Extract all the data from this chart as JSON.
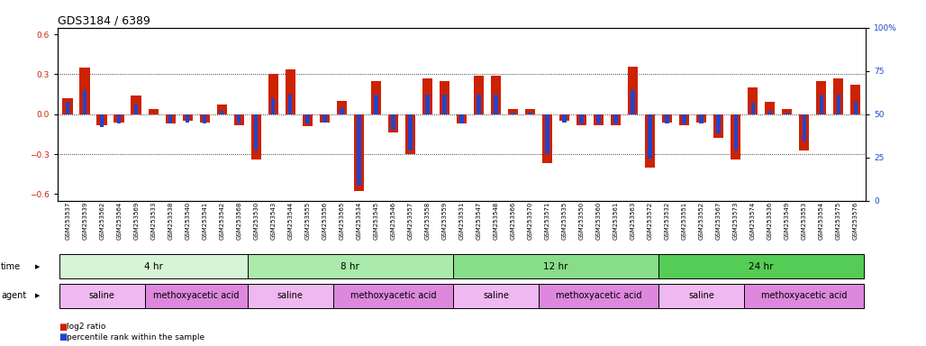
{
  "title": "GDS3184 / 6389",
  "samples": [
    "GSM253537",
    "GSM253539",
    "GSM253562",
    "GSM253564",
    "GSM253569",
    "GSM253533",
    "GSM253538",
    "GSM253540",
    "GSM253541",
    "GSM253542",
    "GSM253568",
    "GSM253530",
    "GSM253543",
    "GSM253544",
    "GSM253555",
    "GSM253556",
    "GSM253565",
    "GSM253534",
    "GSM253545",
    "GSM253546",
    "GSM253557",
    "GSM253558",
    "GSM253559",
    "GSM253531",
    "GSM253547",
    "GSM253548",
    "GSM253566",
    "GSM253570",
    "GSM253571",
    "GSM253535",
    "GSM253550",
    "GSM253560",
    "GSM253561",
    "GSM253563",
    "GSM253572",
    "GSM253532",
    "GSM253551",
    "GSM253552",
    "GSM253567",
    "GSM253573",
    "GSM253574",
    "GSM253536",
    "GSM253549",
    "GSM253553",
    "GSM253554",
    "GSM253575",
    "GSM253576"
  ],
  "log2_ratio": [
    0.12,
    0.35,
    -0.08,
    -0.06,
    0.14,
    0.04,
    -0.07,
    -0.05,
    -0.06,
    0.07,
    -0.08,
    -0.34,
    0.3,
    0.34,
    -0.09,
    -0.06,
    0.1,
    -0.58,
    0.25,
    -0.14,
    -0.3,
    0.27,
    0.25,
    -0.07,
    0.29,
    0.29,
    0.04,
    0.04,
    -0.37,
    -0.05,
    -0.08,
    -0.08,
    -0.08,
    0.36,
    -0.4,
    -0.06,
    -0.08,
    -0.06,
    -0.18,
    -0.34,
    0.2,
    0.09,
    0.04,
    -0.27,
    0.25,
    0.27,
    0.22
  ],
  "percentile": [
    58,
    65,
    42,
    44,
    56,
    50,
    44,
    45,
    44,
    52,
    44,
    27,
    60,
    62,
    44,
    45,
    54,
    5,
    62,
    40,
    27,
    62,
    62,
    44,
    62,
    62,
    51,
    51,
    25,
    45,
    44,
    44,
    44,
    65,
    22,
    44,
    44,
    44,
    38,
    27,
    57,
    52,
    51,
    33,
    62,
    62,
    58
  ],
  "time_groups": [
    {
      "label": "4 hr",
      "start": 0,
      "end": 11,
      "color": "#d6f5d6"
    },
    {
      "label": "8 hr",
      "start": 11,
      "end": 23,
      "color": "#aaeaaa"
    },
    {
      "label": "12 hr",
      "start": 23,
      "end": 35,
      "color": "#88dd88"
    },
    {
      "label": "24 hr",
      "start": 35,
      "end": 47,
      "color": "#55cc55"
    }
  ],
  "agent_groups": [
    {
      "label": "saline",
      "start": 0,
      "end": 5,
      "color": "#f0b8f0"
    },
    {
      "label": "methoxyacetic acid",
      "start": 5,
      "end": 11,
      "color": "#dd88dd"
    },
    {
      "label": "saline",
      "start": 11,
      "end": 16,
      "color": "#f0b8f0"
    },
    {
      "label": "methoxyacetic acid",
      "start": 16,
      "end": 23,
      "color": "#dd88dd"
    },
    {
      "label": "saline",
      "start": 23,
      "end": 28,
      "color": "#f0b8f0"
    },
    {
      "label": "methoxyacetic acid",
      "start": 28,
      "end": 35,
      "color": "#dd88dd"
    },
    {
      "label": "saline",
      "start": 35,
      "end": 40,
      "color": "#f0b8f0"
    },
    {
      "label": "methoxyacetic acid",
      "start": 40,
      "end": 47,
      "color": "#dd88dd"
    }
  ],
  "bar_color_red": "#cc2200",
  "bar_color_blue": "#2244cc",
  "ylim": [
    -0.65,
    0.65
  ],
  "ylim2": [
    0,
    100
  ],
  "yticks_left": [
    -0.6,
    -0.3,
    0.0,
    0.3,
    0.6
  ],
  "yticks_right": [
    0,
    25,
    50,
    75,
    100
  ],
  "dotted_lines": [
    -0.3,
    0.0,
    0.3
  ],
  "title_fontsize": 9,
  "tick_fontsize": 5.0,
  "label_fontsize": 6.5,
  "annotation_fontsize": 7.5
}
